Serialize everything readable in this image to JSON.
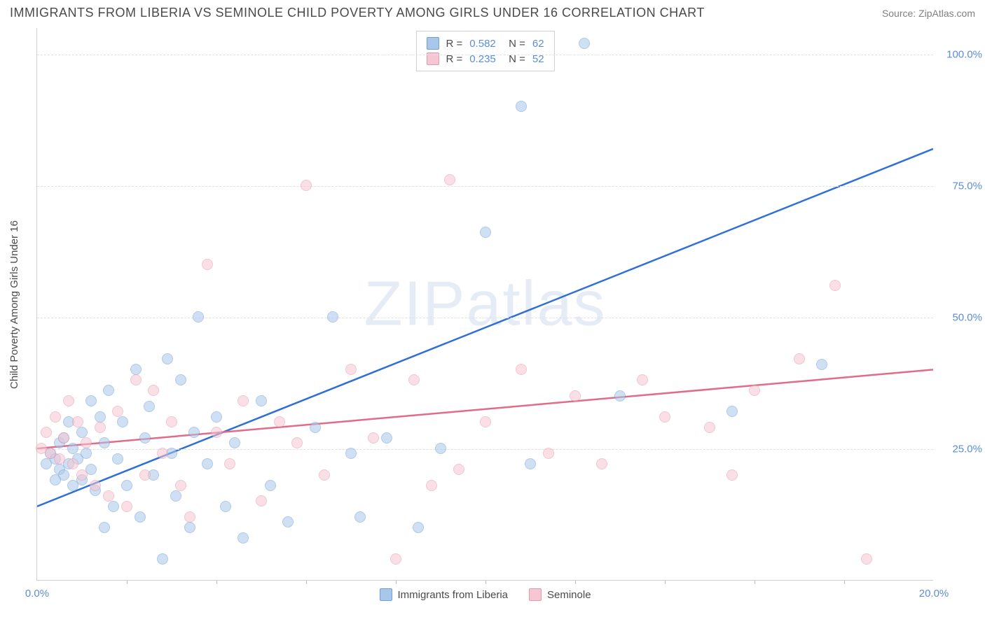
{
  "header": {
    "title": "IMMIGRANTS FROM LIBERIA VS SEMINOLE CHILD POVERTY AMONG GIRLS UNDER 16 CORRELATION CHART",
    "source": "Source: ZipAtlas.com"
  },
  "watermark": {
    "left": "ZIP",
    "right": "atlas"
  },
  "chart": {
    "type": "scatter",
    "y_axis_label": "Child Poverty Among Girls Under 16",
    "background_color": "#ffffff",
    "grid_color": "#e0e0e0",
    "axis_color": "#d0d0d0",
    "tick_label_color": "#5b8dd6",
    "label_color": "#4a4a4a",
    "label_fontsize": 15,
    "title_fontsize": 18,
    "marker_radius": 8,
    "marker_opacity": 0.55,
    "xlim": [
      0,
      20
    ],
    "ylim": [
      0,
      105
    ],
    "x_tick_labels": [
      {
        "value": 0,
        "label": "0.0%"
      },
      {
        "value": 20,
        "label": "20.0%"
      }
    ],
    "x_minor_ticks": [
      2,
      4,
      6,
      8,
      10,
      12,
      14,
      16,
      18
    ],
    "y_ticks": [
      {
        "value": 25,
        "label": "25.0%"
      },
      {
        "value": 50,
        "label": "50.0%"
      },
      {
        "value": 75,
        "label": "75.0%"
      },
      {
        "value": 100,
        "label": "100.0%"
      }
    ],
    "series": [
      {
        "name": "Immigrants from Liberia",
        "fill_color": "#a9c7eb",
        "stroke_color": "#6f9edb",
        "line_color": "#2f6fd8",
        "line_width": 2.5,
        "r": "0.582",
        "n": "62",
        "trend": {
          "x1": 0,
          "y1": 14,
          "x2": 20,
          "y2": 82
        },
        "points": [
          [
            0.2,
            22
          ],
          [
            0.3,
            24
          ],
          [
            0.4,
            23
          ],
          [
            0.5,
            21
          ],
          [
            0.5,
            26
          ],
          [
            0.6,
            20
          ],
          [
            0.6,
            27
          ],
          [
            0.7,
            22
          ],
          [
            0.7,
            30
          ],
          [
            0.8,
            18
          ],
          [
            0.8,
            25
          ],
          [
            0.9,
            23
          ],
          [
            1.0,
            19
          ],
          [
            1.0,
            28
          ],
          [
            1.1,
            24
          ],
          [
            1.2,
            21
          ],
          [
            1.2,
            34
          ],
          [
            1.3,
            17
          ],
          [
            1.4,
            31
          ],
          [
            1.5,
            10
          ],
          [
            1.5,
            26
          ],
          [
            1.6,
            36
          ],
          [
            1.7,
            14
          ],
          [
            1.8,
            23
          ],
          [
            1.9,
            30
          ],
          [
            2.0,
            18
          ],
          [
            2.2,
            40
          ],
          [
            2.3,
            12
          ],
          [
            2.4,
            27
          ],
          [
            2.5,
            33
          ],
          [
            2.6,
            20
          ],
          [
            2.8,
            4
          ],
          [
            2.9,
            42
          ],
          [
            3.0,
            24
          ],
          [
            3.1,
            16
          ],
          [
            3.2,
            38
          ],
          [
            3.4,
            10
          ],
          [
            3.5,
            28
          ],
          [
            3.6,
            50
          ],
          [
            3.8,
            22
          ],
          [
            4.0,
            31
          ],
          [
            4.2,
            14
          ],
          [
            4.4,
            26
          ],
          [
            4.6,
            8
          ],
          [
            5.0,
            34
          ],
          [
            5.2,
            18
          ],
          [
            5.6,
            11
          ],
          [
            6.2,
            29
          ],
          [
            6.6,
            50
          ],
          [
            7.0,
            24
          ],
          [
            7.2,
            12
          ],
          [
            7.8,
            27
          ],
          [
            8.5,
            10
          ],
          [
            9.0,
            25
          ],
          [
            10.0,
            66
          ],
          [
            10.8,
            90
          ],
          [
            11.0,
            22
          ],
          [
            12.2,
            102
          ],
          [
            13.0,
            35
          ],
          [
            15.5,
            32
          ],
          [
            17.5,
            41
          ],
          [
            0.4,
            19
          ]
        ]
      },
      {
        "name": "Seminole",
        "fill_color": "#f6c6d2",
        "stroke_color": "#e499ac",
        "line_color": "#e06c88",
        "line_width": 2.5,
        "r": "0.235",
        "n": "52",
        "trend": {
          "x1": 0,
          "y1": 25,
          "x2": 20,
          "y2": 40
        },
        "points": [
          [
            0.1,
            25
          ],
          [
            0.2,
            28
          ],
          [
            0.3,
            24
          ],
          [
            0.4,
            31
          ],
          [
            0.5,
            23
          ],
          [
            0.6,
            27
          ],
          [
            0.7,
            34
          ],
          [
            0.8,
            22
          ],
          [
            0.9,
            30
          ],
          [
            1.0,
            20
          ],
          [
            1.1,
            26
          ],
          [
            1.3,
            18
          ],
          [
            1.4,
            29
          ],
          [
            1.6,
            16
          ],
          [
            1.8,
            32
          ],
          [
            2.0,
            14
          ],
          [
            2.2,
            38
          ],
          [
            2.4,
            20
          ],
          [
            2.6,
            36
          ],
          [
            2.8,
            24
          ],
          [
            3.0,
            30
          ],
          [
            3.2,
            18
          ],
          [
            3.4,
            12
          ],
          [
            3.8,
            60
          ],
          [
            4.0,
            28
          ],
          [
            4.3,
            22
          ],
          [
            4.6,
            34
          ],
          [
            5.0,
            15
          ],
          [
            5.4,
            30
          ],
          [
            5.8,
            26
          ],
          [
            6.0,
            75
          ],
          [
            6.4,
            20
          ],
          [
            7.0,
            40
          ],
          [
            7.5,
            27
          ],
          [
            8.0,
            4
          ],
          [
            8.4,
            38
          ],
          [
            8.8,
            18
          ],
          [
            9.2,
            76
          ],
          [
            9.4,
            21
          ],
          [
            10.0,
            30
          ],
          [
            10.8,
            40
          ],
          [
            11.4,
            24
          ],
          [
            12.0,
            35
          ],
          [
            12.6,
            22
          ],
          [
            13.5,
            38
          ],
          [
            14.0,
            31
          ],
          [
            15.0,
            29
          ],
          [
            15.5,
            20
          ],
          [
            16.0,
            36
          ],
          [
            17.0,
            42
          ],
          [
            17.8,
            56
          ],
          [
            18.5,
            4
          ]
        ]
      }
    ]
  }
}
